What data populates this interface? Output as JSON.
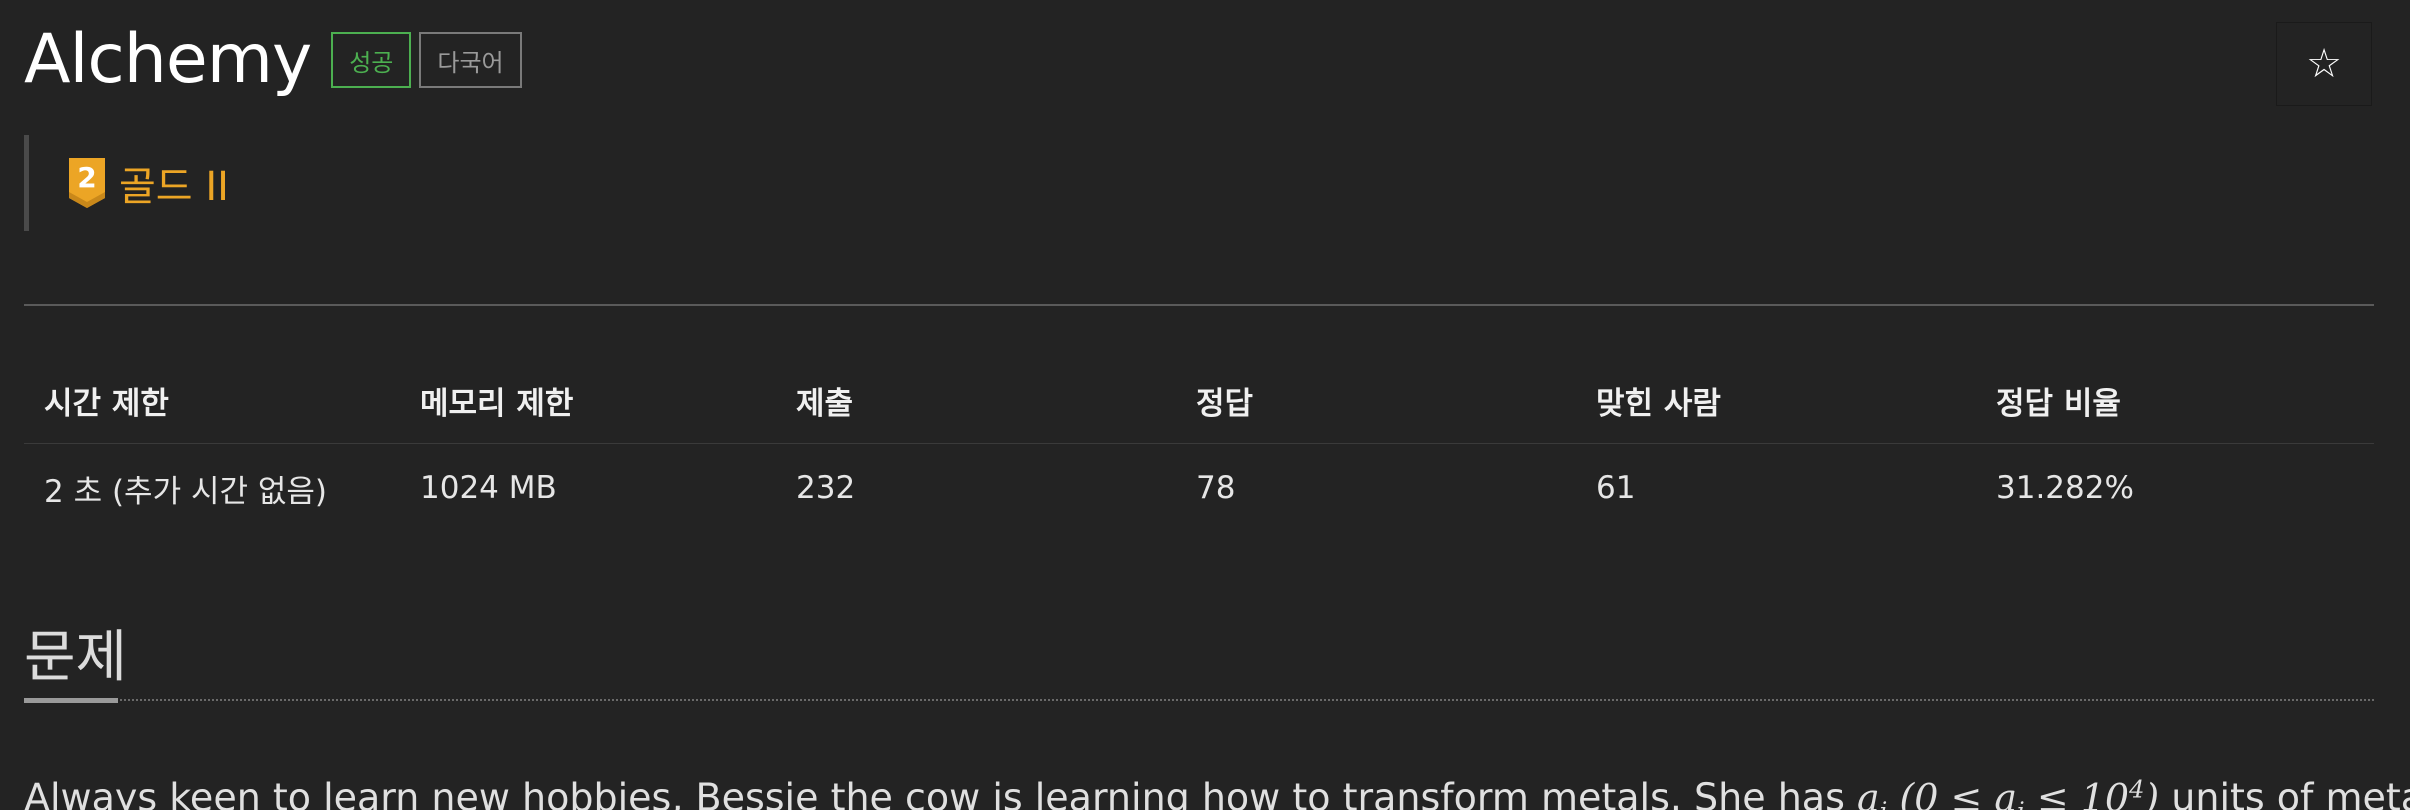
{
  "problem": {
    "title": "Alchemy",
    "badges": {
      "success": "성공",
      "multilang": "다국어"
    },
    "tier": {
      "number": "2",
      "label": "골드 II",
      "color": "#eca525"
    }
  },
  "actions": {
    "favorite_icon": "☆"
  },
  "stats": {
    "headers": [
      "시간 제한",
      "메모리 제한",
      "제출",
      "정답",
      "맞힌 사람",
      "정답 비율"
    ],
    "values": [
      "2 초 (추가 시간 없음)",
      "1024 MB",
      "232",
      "78",
      "61",
      "31.282%"
    ]
  },
  "section": {
    "title": "문제"
  },
  "description": {
    "before_math": "Always keen to learn new hobbies, Bessie the cow is learning how to transform metals. She has ",
    "math_var": "a",
    "math_sub": "i",
    "math_range_open": " (0 ≤ ",
    "math_range_mid": " ≤ 10",
    "math_exp": "4",
    "math_range_close": ")",
    "after_math": " units of metal"
  }
}
